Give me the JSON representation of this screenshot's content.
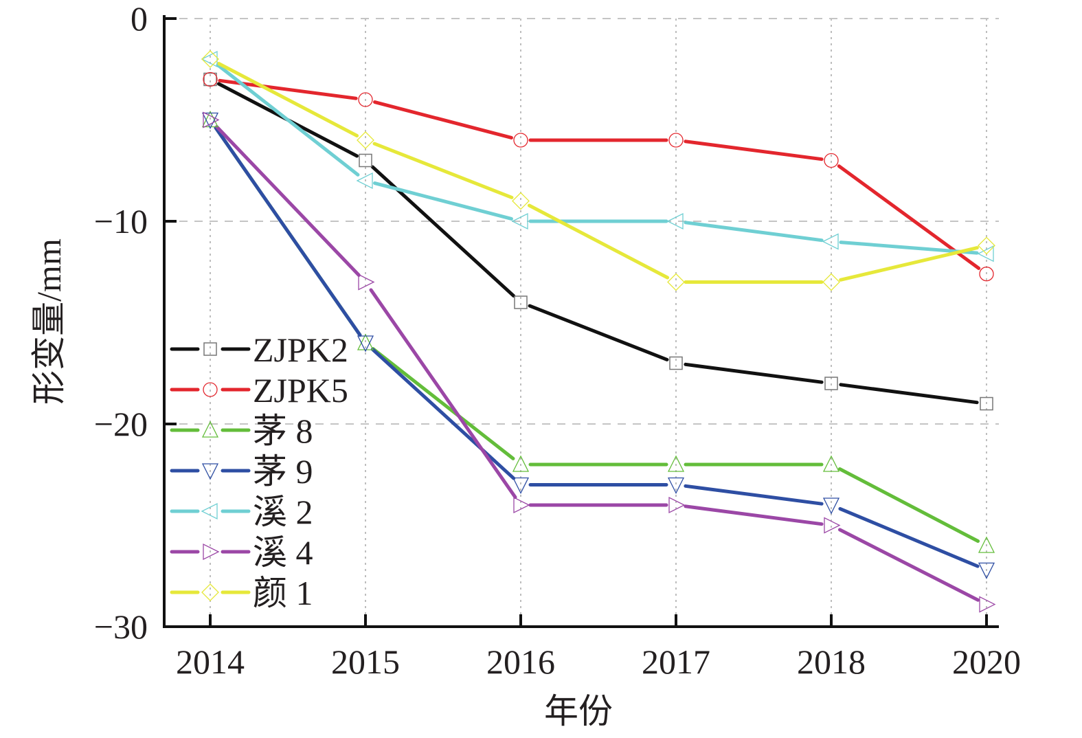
{
  "chart_data": {
    "type": "line",
    "title": "",
    "xlabel": "年份",
    "ylabel": "形变量/mm",
    "categories": [
      "2014",
      "2015",
      "2016",
      "2017",
      "2018",
      "2020"
    ],
    "ylim": [
      -30,
      0
    ],
    "yticks": [
      "0",
      "−10",
      "−20",
      "−30"
    ],
    "ytick_values": [
      0,
      -10,
      -20,
      -30
    ],
    "grid": true,
    "legend_position": "left-center",
    "series": [
      {
        "name": "ZJPK2",
        "color": "#111111",
        "marker": "square",
        "values": [
          -3,
          -7,
          -14,
          -17,
          -18,
          -19
        ]
      },
      {
        "name": "ZJPK5",
        "color": "#e3262d",
        "marker": "circle",
        "values": [
          -3,
          -4,
          -6,
          -6,
          -7,
          -12.6
        ]
      },
      {
        "name": "茅 8",
        "color": "#63bd3a",
        "marker": "triangle-up",
        "values": [
          -5,
          -16,
          -22,
          -22,
          -22,
          -26
        ]
      },
      {
        "name": "茅 9",
        "color": "#2e4ea3",
        "marker": "triangle-down",
        "values": [
          -5,
          -16,
          -23,
          -23,
          -24,
          -27.2
        ]
      },
      {
        "name": "溪 2",
        "color": "#6fcfd3",
        "marker": "triangle-left",
        "values": [
          -2,
          -8,
          -10,
          -10,
          -11,
          -11.6
        ]
      },
      {
        "name": "溪 4",
        "color": "#9b47a6",
        "marker": "triangle-right",
        "values": [
          -5,
          -13,
          -24,
          -24,
          -25,
          -28.9
        ]
      },
      {
        "name": "颜 1",
        "color": "#e6e83a",
        "marker": "diamond",
        "values": [
          -2,
          -6,
          -9,
          -13,
          -13,
          -11.2
        ]
      }
    ]
  }
}
